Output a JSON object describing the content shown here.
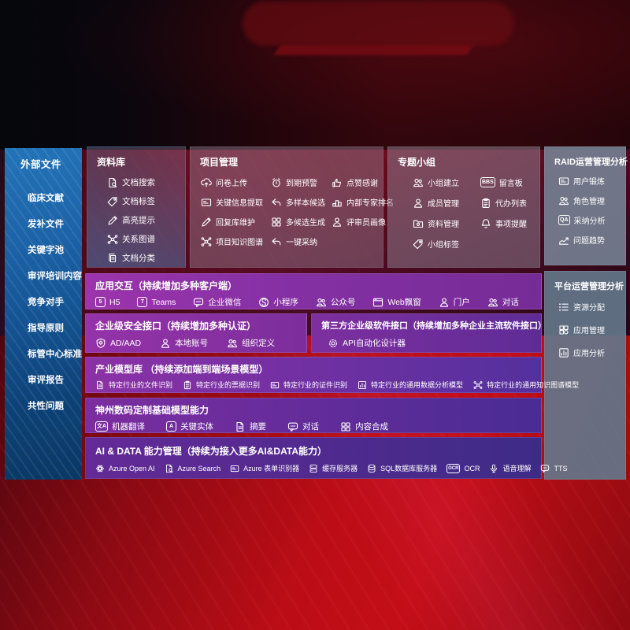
{
  "colors": {
    "wall_red": "#b80d16",
    "sidebar_blue": "#1a63a8",
    "panel_slate": "#64788c",
    "purple_accent": "#9a33aa",
    "deep_purple": "#4a2f9c",
    "text": "#ffffff"
  },
  "sidebar": {
    "title": "外部文件",
    "items": [
      {
        "label": "临床文献"
      },
      {
        "label": "发补文件"
      },
      {
        "label": "关键字池"
      },
      {
        "label": "审评培训内容"
      },
      {
        "label": "竞争对手"
      },
      {
        "label": "指导原则"
      },
      {
        "label": "标管中心标准"
      },
      {
        "label": "审评报告"
      },
      {
        "label": "共性问题"
      }
    ]
  },
  "panels": {
    "repo": {
      "title": "资料库",
      "items": [
        {
          "label": "文档搜索",
          "icon": "doc-search-icon",
          "glyph": "doc-search"
        },
        {
          "label": "文档标签",
          "icon": "tag-icon",
          "glyph": "tag"
        },
        {
          "label": "高亮提示",
          "icon": "highlighter-icon",
          "glyph": "pencil"
        },
        {
          "label": "关系图谱",
          "icon": "relation-graph-icon",
          "glyph": "network"
        },
        {
          "label": "文档分类",
          "icon": "doc-category-icon",
          "glyph": "docs"
        }
      ]
    },
    "project": {
      "title": "项目管理",
      "items": [
        {
          "label": "问卷上传",
          "icon": "cloud-upload-icon",
          "glyph": "cloud-up"
        },
        {
          "label": "到期预警",
          "icon": "alarm-icon",
          "glyph": "alarm"
        },
        {
          "label": "点赞感谢",
          "icon": "thumbs-up-icon",
          "glyph": "thumb"
        },
        {
          "label": "关键信息提取",
          "icon": "key-info-extract-icon",
          "glyph": "card"
        },
        {
          "label": "多样本候选",
          "icon": "multi-sample-icon",
          "glyph": "reply"
        },
        {
          "label": "内部专家排名",
          "icon": "expert-ranking-icon",
          "glyph": "podium"
        },
        {
          "label": "回复库维护",
          "icon": "reply-maintain-icon",
          "glyph": "pencil"
        },
        {
          "label": "多候选生成",
          "icon": "multi-candidate-icon",
          "glyph": "puzzle"
        },
        {
          "label": "评审员画像",
          "icon": "reviewer-portrait-icon",
          "glyph": "person"
        },
        {
          "label": "项目知识图谱",
          "icon": "project-knowledge-graph-icon",
          "glyph": "network"
        },
        {
          "label": "一键采纳",
          "icon": "one-click-adopt-icon",
          "glyph": "reply"
        }
      ]
    },
    "groups": {
      "title": "专题小组",
      "items": [
        {
          "label": "小组建立",
          "icon": "group-create-icon",
          "glyph": "people"
        },
        {
          "label": "留言板",
          "icon": "bbs-board-icon",
          "glyph": "txt:BBS"
        },
        {
          "label": "成员管理",
          "icon": "member-manage-icon",
          "glyph": "person"
        },
        {
          "label": "代办列表",
          "icon": "todo-list-icon",
          "glyph": "clipboard"
        },
        {
          "label": "资料管理",
          "icon": "data-manage-icon",
          "glyph": "folder"
        },
        {
          "label": "事项提醒",
          "icon": "reminder-bell-icon",
          "glyph": "bell"
        },
        {
          "label": "小组标签",
          "icon": "group-tag-icon",
          "glyph": "tag"
        }
      ]
    },
    "raid": {
      "title": "RAID运营管理分析",
      "items": [
        {
          "label": "用户锻炼",
          "icon": "user-card-icon",
          "glyph": "card"
        },
        {
          "label": "角色管理",
          "icon": "role-manage-icon",
          "glyph": "people"
        },
        {
          "label": "采纳分析",
          "icon": "adoption-analysis-icon",
          "glyph": "txt:QA"
        },
        {
          "label": "问题趋势",
          "icon": "issue-trend-icon",
          "glyph": "trend"
        }
      ]
    },
    "platform": {
      "title": "平台运营管理分析",
      "items": [
        {
          "label": "资源分配",
          "icon": "resource-allocation-icon",
          "glyph": "list"
        },
        {
          "label": "应用管理",
          "icon": "app-manage-icon",
          "glyph": "grid"
        },
        {
          "label": "应用分析",
          "icon": "app-analysis-icon",
          "glyph": "chart"
        }
      ]
    }
  },
  "rows": {
    "interaction": {
      "title": "应用交互（持续增加多种客户端）",
      "items": [
        {
          "label": "H5",
          "icon": "h5-icon",
          "glyph": "txt:5"
        },
        {
          "label": "Teams",
          "icon": "teams-icon",
          "glyph": "txt:T"
        },
        {
          "label": "企业微信",
          "icon": "wechat-work-icon",
          "glyph": "chat"
        },
        {
          "label": "小程序",
          "icon": "miniprogram-icon",
          "glyph": "mini"
        },
        {
          "label": "公众号",
          "icon": "official-account-icon",
          "glyph": "people"
        },
        {
          "label": "Web飘窗",
          "icon": "web-popup-icon",
          "glyph": "browser"
        },
        {
          "label": "门户",
          "icon": "portal-icon",
          "glyph": "person"
        },
        {
          "label": "对话",
          "icon": "dialog-icon",
          "glyph": "people"
        }
      ]
    },
    "security": {
      "title": "企业级安全接口（持续增加多种认证）",
      "items": [
        {
          "label": "AD/AAD",
          "icon": "ad-shield-icon",
          "glyph": "shield"
        },
        {
          "label": "本地账号",
          "icon": "local-account-icon",
          "glyph": "person"
        },
        {
          "label": "组织定义",
          "icon": "org-definition-icon",
          "glyph": "people"
        }
      ]
    },
    "thirdparty": {
      "title": "第三方企业级软件接口（持续增加多种企业主流软件接口）",
      "items": [
        {
          "label": "API自动化设计器",
          "icon": "api-designer-icon",
          "glyph": "gear"
        }
      ]
    },
    "industry": {
      "title": "产业模型库 （持续添加端到端场景模型）",
      "items": [
        {
          "label": "特定行业的文件识别",
          "icon": "file-recognition-icon",
          "glyph": "doc"
        },
        {
          "label": "特定行业的票据识别",
          "icon": "invoice-recognition-icon",
          "glyph": "clipboard"
        },
        {
          "label": "特定行业的证件识别",
          "icon": "id-recognition-icon",
          "glyph": "card"
        },
        {
          "label": "特定行业的通用数据分析模型",
          "icon": "data-analysis-model-icon",
          "glyph": "chart"
        },
        {
          "label": "特定行业的通用知识图谱模型",
          "icon": "knowledge-graph-model-icon",
          "glyph": "network"
        }
      ]
    },
    "basemodel": {
      "title": "神州数码定制基础模型能力",
      "items": [
        {
          "label": "机器翻译",
          "icon": "translate-icon",
          "glyph": "txt:文A"
        },
        {
          "label": "关键实体",
          "icon": "key-entity-icon",
          "glyph": "txt:A"
        },
        {
          "label": "摘要",
          "icon": "summary-icon",
          "glyph": "doc"
        },
        {
          "label": "对话",
          "icon": "dialog-icon",
          "glyph": "chat"
        },
        {
          "label": "内容合成",
          "icon": "content-synthesis-icon",
          "glyph": "puzzle"
        }
      ]
    },
    "aidata": {
      "title": "AI & DATA 能力管理（持续为接入更多AI&DATA能力）",
      "items": [
        {
          "label": "Azure Open AI",
          "icon": "openai-icon",
          "glyph": "openai"
        },
        {
          "label": "Azure Search",
          "icon": "azure-search-icon",
          "glyph": "doc-search"
        },
        {
          "label": "Azure 表单识别器",
          "icon": "form-recognizer-icon",
          "glyph": "card"
        },
        {
          "label": "缓存服务器",
          "icon": "cache-server-icon",
          "glyph": "server"
        },
        {
          "label": "SQL数据库服务器",
          "icon": "sql-database-icon",
          "glyph": "database"
        },
        {
          "label": "OCR",
          "icon": "ocr-icon",
          "glyph": "txt:OCR"
        },
        {
          "label": "语音理解",
          "icon": "speech-understanding-icon",
          "glyph": "voice"
        },
        {
          "label": "TTS",
          "icon": "tts-icon",
          "glyph": "chat"
        }
      ]
    }
  }
}
